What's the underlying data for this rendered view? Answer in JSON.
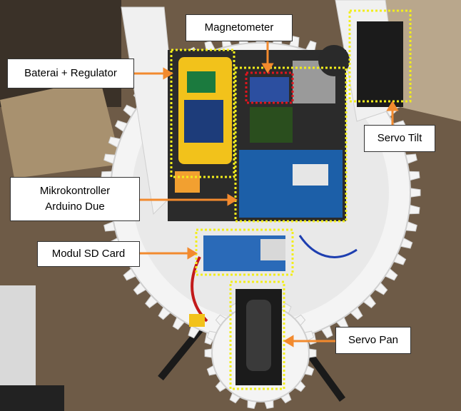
{
  "labels": {
    "magnetometer": "Magnetometer",
    "baterai": "Baterai + Regulator",
    "servo_tilt": "Servo Tilt",
    "mikrokontroller_line1": "Mikrokontroller",
    "mikrokontroller_line2": "Arduino  Due",
    "modul_sd": "Modul SD Card",
    "servo_pan": "Servo Pan"
  },
  "colors": {
    "highlight_box": "#f2ee1c",
    "magnetometer_box": "#e0141e",
    "arrow": "#f28a2e",
    "gear": "#f4f4f4",
    "board": "#1c5fa8"
  }
}
